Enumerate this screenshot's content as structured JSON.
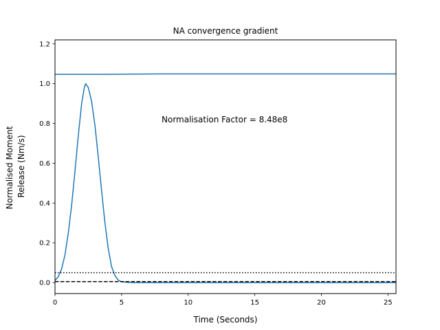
{
  "chart_data": {
    "type": "line",
    "title": "NA convergence gradient",
    "xlabel": "Time (Seconds)",
    "ylabel_lines": [
      "Normalised Moment",
      "Release (Nm/s)"
    ],
    "annotation": "Normalisation Factor = 8.48e8",
    "xlim": [
      0,
      25.6
    ],
    "ylim": [
      -0.055,
      1.22
    ],
    "grid": false,
    "x_ticks": [
      0,
      5,
      10,
      15,
      20,
      25
    ],
    "x_tick_labels": [
      "0",
      "5",
      "10",
      "15",
      "20",
      "25"
    ],
    "y_ticks": [
      0.0,
      0.2,
      0.4,
      0.6,
      0.8,
      1.0,
      1.2
    ],
    "y_tick_labels": [
      "0.0",
      "0.2",
      "0.4",
      "0.6",
      "0.8",
      "1.0",
      "1.2"
    ],
    "series": [
      {
        "style": "solid",
        "color": "#1f77b4",
        "points": [
          [
            0,
            1.047
          ],
          [
            2,
            1.047
          ],
          [
            4,
            1.047
          ],
          [
            6,
            1.048
          ],
          [
            8,
            1.049
          ],
          [
            10,
            1.049
          ],
          [
            12,
            1.049
          ],
          [
            14,
            1.049
          ],
          [
            16,
            1.049
          ],
          [
            18,
            1.049
          ],
          [
            20,
            1.049
          ],
          [
            22,
            1.049
          ],
          [
            24,
            1.049
          ],
          [
            25.6,
            1.049
          ]
        ]
      },
      {
        "style": "solid",
        "color": "#1f77b4",
        "points": [
          [
            0,
            0.01
          ],
          [
            0.25,
            0.03
          ],
          [
            0.5,
            0.07
          ],
          [
            0.75,
            0.14
          ],
          [
            1.0,
            0.25
          ],
          [
            1.25,
            0.39
          ],
          [
            1.5,
            0.56
          ],
          [
            1.75,
            0.74
          ],
          [
            2.0,
            0.9
          ],
          [
            2.2,
            0.98
          ],
          [
            2.3,
            1.0
          ],
          [
            2.5,
            0.98
          ],
          [
            2.75,
            0.91
          ],
          [
            3.0,
            0.79
          ],
          [
            3.25,
            0.63
          ],
          [
            3.5,
            0.46
          ],
          [
            3.75,
            0.3
          ],
          [
            4.0,
            0.17
          ],
          [
            4.25,
            0.08
          ],
          [
            4.5,
            0.035
          ],
          [
            4.75,
            0.012
          ],
          [
            5.0,
            0.004
          ],
          [
            5.5,
            0.001
          ],
          [
            6.0,
            0.0
          ],
          [
            25.6,
            0.0
          ]
        ]
      },
      {
        "style": "dotted",
        "color": "#000000",
        "points": [
          [
            0,
            0.05
          ],
          [
            25.6,
            0.05
          ]
        ]
      },
      {
        "style": "dashed",
        "color": "#000000",
        "points": [
          [
            0,
            0.005
          ],
          [
            25.6,
            0.005
          ]
        ]
      }
    ]
  }
}
